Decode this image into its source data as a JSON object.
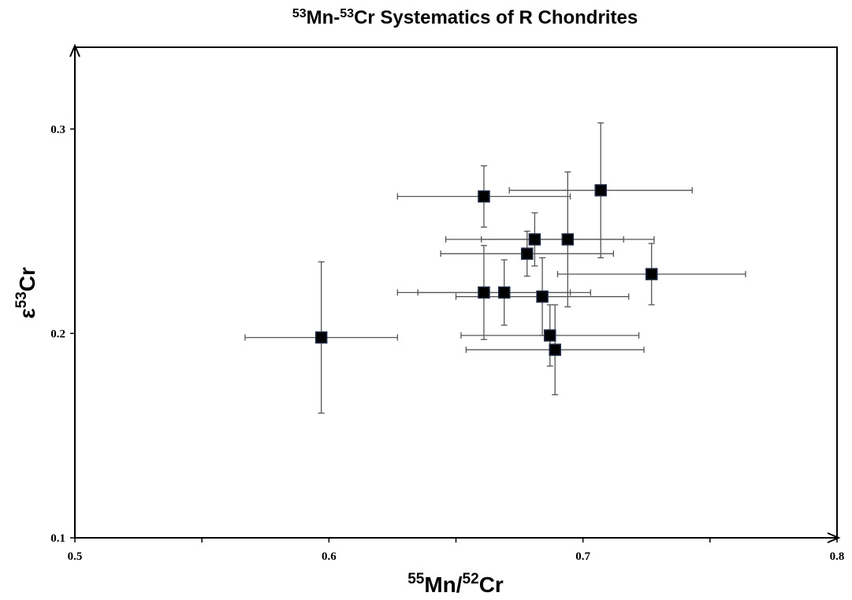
{
  "chart_data": {
    "type": "scatter",
    "title": {
      "sup1": "53",
      "main1": "Mn-",
      "sup2": "53",
      "main2": "Cr Systematics of R Chondrites"
    },
    "xlabel": {
      "sup1": "55",
      "main1": "Mn/",
      "sup2": "52",
      "main2": "Cr"
    },
    "ylabel": {
      "main1": "ε",
      "sup1": "53",
      "main2": "Cr"
    },
    "xlim": [
      0.5,
      0.8
    ],
    "ylim": [
      0.1,
      0.34
    ],
    "x_ticks": [
      0.5,
      0.6,
      0.7,
      0.8
    ],
    "x_tick_labels": [
      "0.5",
      "0.6",
      "0.7",
      "0.8"
    ],
    "x_minor_ticks": [
      0.55,
      0.65,
      0.75
    ],
    "y_ticks": [
      0.1,
      0.2,
      0.3
    ],
    "y_tick_labels": [
      "0.1",
      "0.2",
      "0.3"
    ],
    "grid": false,
    "legend": "none",
    "marker": "square",
    "marker_color": "#000000",
    "marker_edge_color": "#1f2a44",
    "errorbar_color": "#555555",
    "points": [
      {
        "x": 0.597,
        "y": 0.198,
        "xerr": 0.03,
        "yerr": 0.037
      },
      {
        "x": 0.661,
        "y": 0.267,
        "xerr": 0.034,
        "yerr": 0.015
      },
      {
        "x": 0.661,
        "y": 0.22,
        "xerr": 0.034,
        "yerr": 0.023
      },
      {
        "x": 0.669,
        "y": 0.22,
        "xerr": 0.034,
        "yerr": 0.016
      },
      {
        "x": 0.678,
        "y": 0.239,
        "xerr": 0.034,
        "yerr": 0.011
      },
      {
        "x": 0.681,
        "y": 0.246,
        "xerr": 0.035,
        "yerr": 0.013
      },
      {
        "x": 0.684,
        "y": 0.218,
        "xerr": 0.034,
        "yerr": 0.019
      },
      {
        "x": 0.687,
        "y": 0.199,
        "xerr": 0.035,
        "yerr": 0.015
      },
      {
        "x": 0.689,
        "y": 0.192,
        "xerr": 0.035,
        "yerr": 0.022
      },
      {
        "x": 0.694,
        "y": 0.246,
        "xerr": 0.034,
        "yerr": 0.033
      },
      {
        "x": 0.707,
        "y": 0.27,
        "xerr": 0.036,
        "yerr": 0.033
      },
      {
        "x": 0.727,
        "y": 0.229,
        "xerr": 0.037,
        "yerr": 0.015
      }
    ]
  }
}
